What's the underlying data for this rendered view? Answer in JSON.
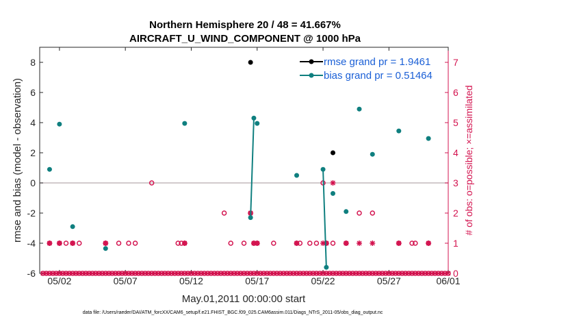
{
  "colors": {
    "rmse": "#000000",
    "bias": "#0f7f7f",
    "obs": "#d3134f",
    "zero_line": "#c4b8bc",
    "legend_text": "#1a5fd6",
    "axis": "#262626"
  },
  "chart_data": {
    "type": "scatter",
    "title_line1": "Northern Hemisphere 20 / 48 = 41.667%",
    "title_line2": "AIRCRAFT_U_WIND_COMPONENT @ 1000 hPa",
    "xlabel": "May.01,2011 00:00:00 start",
    "ylabel": "rmse and bias (model - observation)",
    "ylabel_right": "# of obs: o=possible; ×=assimilated",
    "xlim": [
      0.5,
      31.5
    ],
    "ylim": [
      -6,
      9
    ],
    "ylim_right": [
      0,
      7.5
    ],
    "x_ticks": [
      {
        "value": 2,
        "label": "05/02"
      },
      {
        "value": 7,
        "label": "05/07"
      },
      {
        "value": 12,
        "label": "05/12"
      },
      {
        "value": 17,
        "label": "05/17"
      },
      {
        "value": 22,
        "label": "05/22"
      },
      {
        "value": 27,
        "label": "05/27"
      },
      {
        "value": 32,
        "label": "06/01"
      }
    ],
    "y_ticks": [
      -6,
      -4,
      -2,
      0,
      2,
      4,
      6,
      8
    ],
    "y_ticks_right": [
      0,
      1,
      2,
      3,
      4,
      5,
      6,
      7
    ],
    "legend": {
      "rmse": "rmse grand pr = 1.9461",
      "bias": "bias grand pr = 0.51464"
    },
    "series": [
      {
        "name": "rmse",
        "points": [
          [
            16.5,
            8.0
          ],
          [
            22.75,
            2.0
          ]
        ]
      },
      {
        "name": "bias",
        "points": [
          [
            1.25,
            0.9
          ],
          [
            2.0,
            3.9
          ],
          [
            3.0,
            -2.9
          ],
          [
            5.5,
            -4.35
          ],
          [
            11.5,
            3.95
          ],
          [
            16.5,
            -2.3
          ],
          [
            16.75,
            4.3
          ],
          [
            17.0,
            3.95
          ],
          [
            20.0,
            0.5
          ],
          [
            22.0,
            0.9
          ],
          [
            22.25,
            -5.6
          ],
          [
            22.75,
            -0.7
          ],
          [
            23.75,
            -1.9
          ],
          [
            24.75,
            4.9
          ],
          [
            25.75,
            1.9
          ],
          [
            27.75,
            3.45
          ],
          [
            30.0,
            2.95
          ]
        ],
        "lines": [
          [
            [
              16.5,
              -2.3
            ],
            [
              16.75,
              4.3
            ]
          ],
          [
            [
              22.0,
              0.9
            ],
            [
              22.25,
              -5.6
            ]
          ]
        ]
      },
      {
        "name": "obs_possible",
        "points": [
          [
            1.25,
            1
          ],
          [
            2.0,
            1
          ],
          [
            2.5,
            1
          ],
          [
            3.0,
            1
          ],
          [
            3.5,
            1
          ],
          [
            5.5,
            1
          ],
          [
            6.5,
            1
          ],
          [
            7.25,
            1
          ],
          [
            7.75,
            1
          ],
          [
            9.0,
            3
          ],
          [
            11.0,
            1
          ],
          [
            11.25,
            1
          ],
          [
            11.5,
            1
          ],
          [
            14.5,
            2
          ],
          [
            15.0,
            1
          ],
          [
            16.0,
            1
          ],
          [
            16.5,
            2
          ],
          [
            16.75,
            1
          ],
          [
            17.0,
            1
          ],
          [
            18.25,
            1
          ],
          [
            20.0,
            1
          ],
          [
            20.25,
            1
          ],
          [
            21.0,
            1
          ],
          [
            21.5,
            1
          ],
          [
            22.0,
            3
          ],
          [
            22.25,
            1
          ],
          [
            22.75,
            1
          ],
          [
            23.75,
            1
          ],
          [
            24.75,
            2
          ],
          [
            25.75,
            2
          ],
          [
            27.75,
            1
          ],
          [
            28.75,
            1
          ],
          [
            29.0,
            1
          ],
          [
            30.0,
            1
          ]
        ]
      },
      {
        "name": "obs_assimilated",
        "points": [
          [
            1.25,
            1
          ],
          [
            2.0,
            1
          ],
          [
            3.0,
            1
          ],
          [
            5.5,
            1
          ],
          [
            11.5,
            1
          ],
          [
            16.5,
            2
          ],
          [
            16.75,
            1
          ],
          [
            17.0,
            1
          ],
          [
            20.0,
            1
          ],
          [
            22.0,
            1
          ],
          [
            22.25,
            1
          ],
          [
            22.75,
            3
          ],
          [
            23.75,
            1
          ],
          [
            24.75,
            1
          ],
          [
            25.75,
            1
          ],
          [
            27.75,
            1
          ],
          [
            30.0,
            1
          ]
        ]
      }
    ],
    "baseline_counts": "every 0.25 day from start to end at 0"
  },
  "footer": "data file: /Users/raeder/DAI/ATM_forcXX/CAM6_setup/f.e21.FHIST_BGC.f09_025.CAM6assim.011/Diags_NTrS_2011-05/obs_diag_output.nc"
}
